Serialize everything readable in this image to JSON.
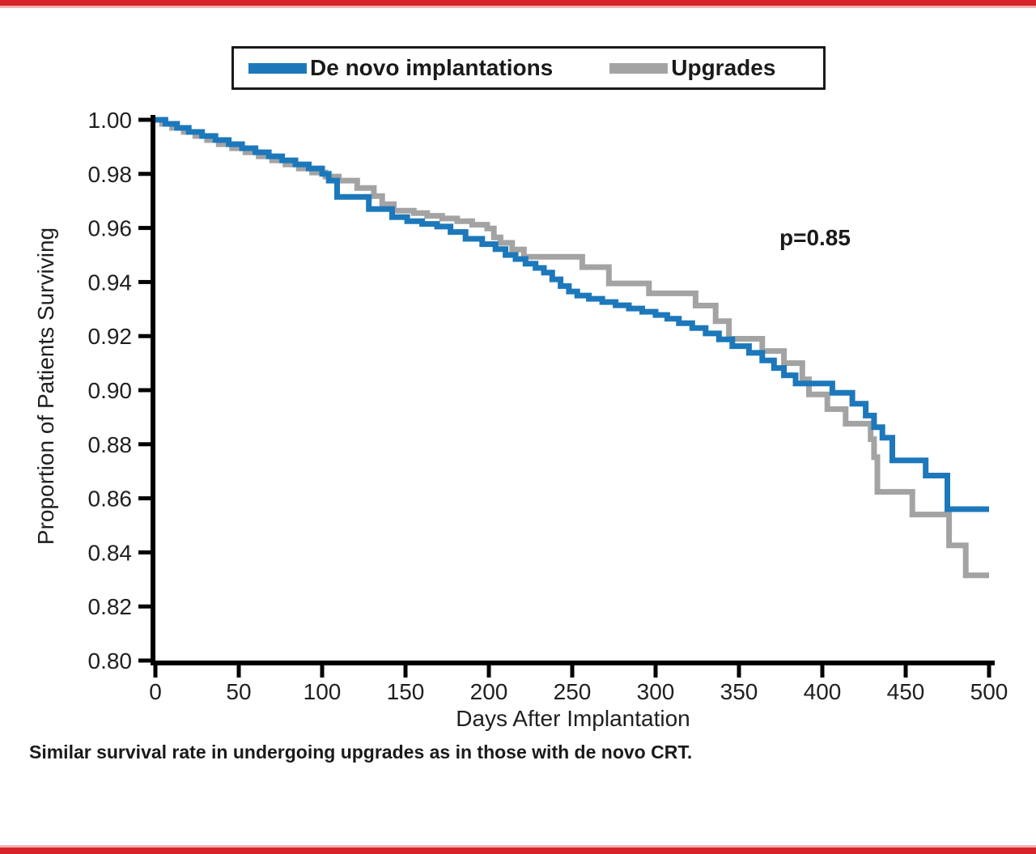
{
  "caption": "Similar survival rate in undergoing upgrades as in those with de novo CRT.",
  "legend": {
    "items": [
      {
        "label": "De novo implantations",
        "color": "#1c78bb"
      },
      {
        "label": "Upgrades",
        "color": "#a3a3a3"
      }
    ]
  },
  "colors": {
    "accent_bar": "#d8232a",
    "accent_bar_light": "#f3b3b4",
    "axis": "#000000",
    "text": "#1f1f1f",
    "de_novo": "#1c78bb",
    "upgrades": "#a3a3a3"
  },
  "chart_data": {
    "type": "line",
    "subtype": "kaplan-meier-step",
    "title": "",
    "xlabel": "Days After Implantation",
    "ylabel": "Proportion of Patients Surviving",
    "annotation": "p=0.85",
    "xlim": [
      0,
      500
    ],
    "ylim": [
      0.8,
      1.0
    ],
    "xticks": [
      0,
      50,
      100,
      150,
      200,
      250,
      300,
      350,
      400,
      450,
      500
    ],
    "yticks": [
      1.0,
      0.98,
      0.96,
      0.94,
      0.92,
      0.9,
      0.88,
      0.86,
      0.84,
      0.82,
      0.8
    ],
    "grid": false,
    "legend_position": "top",
    "series": [
      {
        "name": "De novo implantations",
        "color": "#1c78bb",
        "points": [
          [
            0,
            1.0
          ],
          [
            6,
            0.9985
          ],
          [
            13,
            0.997
          ],
          [
            20,
            0.9955
          ],
          [
            28,
            0.994
          ],
          [
            36,
            0.9925
          ],
          [
            44,
            0.991
          ],
          [
            52,
            0.9895
          ],
          [
            60,
            0.988
          ],
          [
            68,
            0.9865
          ],
          [
            76,
            0.985
          ],
          [
            84,
            0.9835
          ],
          [
            92,
            0.982
          ],
          [
            100,
            0.98
          ],
          [
            104,
            0.9775
          ],
          [
            109,
            0.9715
          ],
          [
            128,
            0.967
          ],
          [
            142,
            0.964
          ],
          [
            151,
            0.9625
          ],
          [
            160,
            0.9615
          ],
          [
            169,
            0.9605
          ],
          [
            177,
            0.9585
          ],
          [
            186,
            0.956
          ],
          [
            196,
            0.954
          ],
          [
            204,
            0.9522
          ],
          [
            210,
            0.95
          ],
          [
            216,
            0.9485
          ],
          [
            222,
            0.9468
          ],
          [
            228,
            0.9452
          ],
          [
            233,
            0.9435
          ],
          [
            238,
            0.941
          ],
          [
            243,
            0.9385
          ],
          [
            248,
            0.9365
          ],
          [
            253,
            0.935
          ],
          [
            260,
            0.9338
          ],
          [
            268,
            0.9326
          ],
          [
            276,
            0.9314
          ],
          [
            284,
            0.9302
          ],
          [
            292,
            0.929
          ],
          [
            300,
            0.9278
          ],
          [
            307,
            0.9264
          ],
          [
            314,
            0.9248
          ],
          [
            322,
            0.923
          ],
          [
            330,
            0.921
          ],
          [
            338,
            0.9188
          ],
          [
            346,
            0.9163
          ],
          [
            356,
            0.9138
          ],
          [
            364,
            0.911
          ],
          [
            371,
            0.9082
          ],
          [
            377,
            0.9055
          ],
          [
            384,
            0.9025
          ],
          [
            406,
            0.899
          ],
          [
            418,
            0.895
          ],
          [
            426,
            0.8906
          ],
          [
            431,
            0.8863
          ],
          [
            436,
            0.8824
          ],
          [
            442,
            0.874
          ],
          [
            462,
            0.8684
          ],
          [
            475,
            0.856
          ],
          [
            500,
            0.856
          ]
        ]
      },
      {
        "name": "Upgrades",
        "color": "#a3a3a3",
        "points": [
          [
            0,
            1.0
          ],
          [
            4,
            0.9985
          ],
          [
            10,
            0.997
          ],
          [
            17,
            0.9955
          ],
          [
            24,
            0.994
          ],
          [
            31,
            0.9925
          ],
          [
            38,
            0.991
          ],
          [
            46,
            0.9895
          ],
          [
            54,
            0.988
          ],
          [
            62,
            0.9865
          ],
          [
            70,
            0.985
          ],
          [
            78,
            0.9835
          ],
          [
            86,
            0.982
          ],
          [
            94,
            0.9805
          ],
          [
            102,
            0.979
          ],
          [
            110,
            0.9775
          ],
          [
            121,
            0.9748
          ],
          [
            131,
            0.9718
          ],
          [
            136,
            0.9688
          ],
          [
            143,
            0.9664
          ],
          [
            155,
            0.9655
          ],
          [
            163,
            0.9645
          ],
          [
            172,
            0.9635
          ],
          [
            181,
            0.9625
          ],
          [
            190,
            0.9612
          ],
          [
            199,
            0.9598
          ],
          [
            203,
            0.9565
          ],
          [
            207,
            0.9545
          ],
          [
            214,
            0.952
          ],
          [
            221,
            0.9493
          ],
          [
            256,
            0.9455
          ],
          [
            272,
            0.9395
          ],
          [
            296,
            0.9358
          ],
          [
            324,
            0.9313
          ],
          [
            336,
            0.9255
          ],
          [
            344,
            0.919
          ],
          [
            364,
            0.9145
          ],
          [
            377,
            0.91
          ],
          [
            388,
            0.904
          ],
          [
            392,
            0.8984
          ],
          [
            403,
            0.893
          ],
          [
            414,
            0.8876
          ],
          [
            429,
            0.8819
          ],
          [
            431,
            0.8752
          ],
          [
            433,
            0.8624
          ],
          [
            454,
            0.854
          ],
          [
            476,
            0.8426
          ],
          [
            486,
            0.8315
          ],
          [
            500,
            0.8315
          ]
        ]
      }
    ]
  }
}
